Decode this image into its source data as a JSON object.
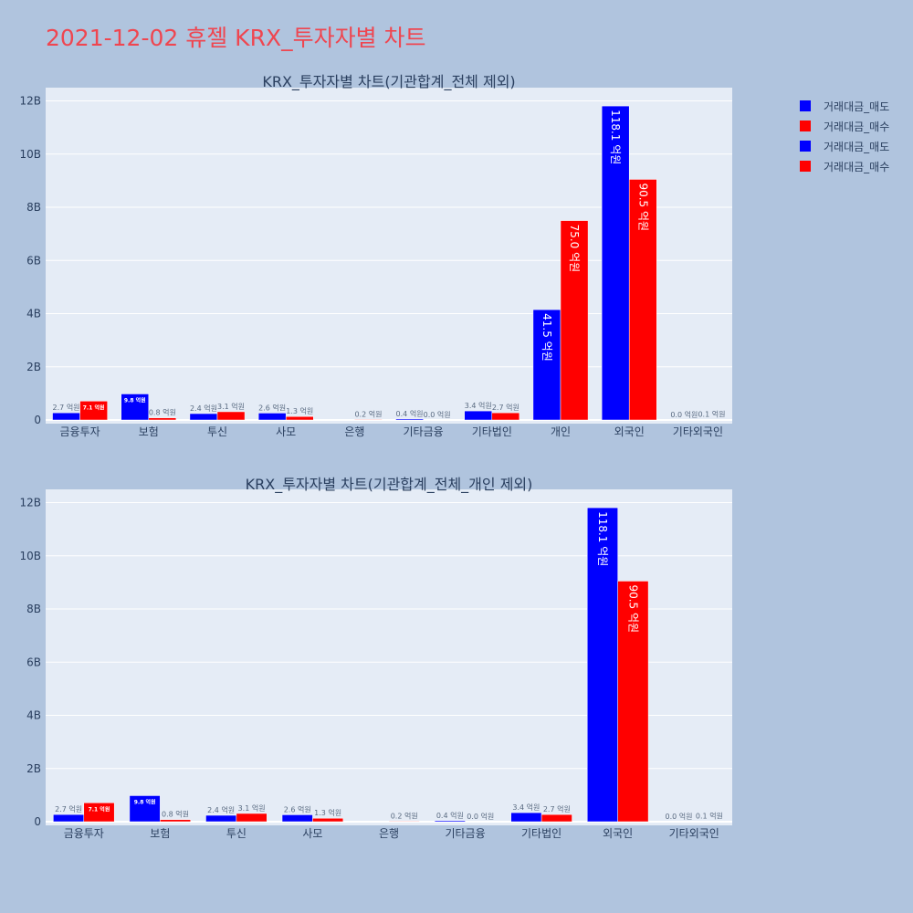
{
  "title": "2021-12-02 휴젤 KRX_투자자별 차트",
  "colors": {
    "sell": "#0000ff",
    "buy": "#ff0000",
    "plot_bg": "#e5ecf6",
    "page_bg": "#b0c4de",
    "title": "#ef4650"
  },
  "legend": [
    {
      "label": "거래대금_매도",
      "color": "#0000ff"
    },
    {
      "label": "거래대금_매수",
      "color": "#ff0000"
    },
    {
      "label": "거래대금_매도",
      "color": "#0000ff"
    },
    {
      "label": "거래대금_매수",
      "color": "#ff0000"
    }
  ],
  "chart_data": [
    {
      "type": "bar",
      "title": "KRX_투자자별 차트(기관합계_전체 제외)",
      "categories": [
        "금융투자",
        "보험",
        "투신",
        "사모",
        "은행",
        "기타금융",
        "기타법인",
        "개인",
        "외국인",
        "기타외국인"
      ],
      "series": [
        {
          "name": "거래대금_매도",
          "color": "#0000ff",
          "values": [
            270000000,
            980000000,
            240000000,
            260000000,
            0,
            40000000,
            340000000,
            4150000000,
            11810000000,
            0
          ],
          "labels": [
            "2.7 억원",
            "9.8 억원",
            "2.4 억원",
            "2.6 억원",
            "",
            "0.4 억원",
            "3.4 억원",
            "41.5 억원",
            "118.1 억원",
            "0.0 억원"
          ]
        },
        {
          "name": "거래대금_매수",
          "color": "#ff0000",
          "values": [
            710000000,
            80000000,
            310000000,
            130000000,
            20000000,
            0,
            270000000,
            7500000000,
            9050000000,
            10000000
          ],
          "labels": [
            "7.1 억원",
            "0.8 억원",
            "3.1 억원",
            "1.3 억원",
            "0.2 억원",
            "0.0 억원",
            "2.7 억원",
            "75.0 억원",
            "90.5 억원",
            "0.1 억원"
          ]
        }
      ],
      "yticks": [
        "0",
        "2B",
        "4B",
        "6B",
        "8B",
        "10B",
        "12B"
      ],
      "ylim": [
        0,
        12500000000
      ],
      "grid": true
    },
    {
      "type": "bar",
      "title": "KRX_투자자별 차트(기관합계_전체_개인 제외)",
      "categories": [
        "금융투자",
        "보험",
        "투신",
        "사모",
        "은행",
        "기타금융",
        "기타법인",
        "외국인",
        "기타외국인"
      ],
      "series": [
        {
          "name": "거래대금_매도",
          "color": "#0000ff",
          "values": [
            270000000,
            980000000,
            240000000,
            260000000,
            0,
            40000000,
            340000000,
            11810000000,
            0
          ],
          "labels": [
            "2.7 억원",
            "9.8 억원",
            "2.4 억원",
            "2.6 억원",
            "",
            "0.4 억원",
            "3.4 억원",
            "118.1 억원",
            "0.0 억원"
          ]
        },
        {
          "name": "거래대금_매수",
          "color": "#ff0000",
          "values": [
            710000000,
            80000000,
            310000000,
            130000000,
            20000000,
            0,
            270000000,
            9050000000,
            10000000
          ],
          "labels": [
            "7.1 억원",
            "0.8 억원",
            "3.1 억원",
            "1.3 억원",
            "0.2 억원",
            "0.0 억원",
            "2.7 억원",
            "90.5 억원",
            "0.1 억원"
          ]
        }
      ],
      "yticks": [
        "0",
        "2B",
        "4B",
        "6B",
        "8B",
        "10B",
        "12B"
      ],
      "ylim": [
        0,
        12500000000
      ],
      "grid": true
    }
  ]
}
